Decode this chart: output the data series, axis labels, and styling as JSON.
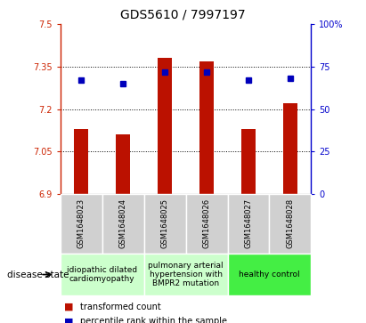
{
  "title": "GDS5610 / 7997197",
  "samples": [
    "GSM1648023",
    "GSM1648024",
    "GSM1648025",
    "GSM1648026",
    "GSM1648027",
    "GSM1648028"
  ],
  "transformed_count": [
    7.13,
    7.11,
    7.38,
    7.37,
    7.13,
    7.22
  ],
  "percentile_rank": [
    67,
    65,
    72,
    72,
    67,
    68
  ],
  "ylim_left": [
    6.9,
    7.5
  ],
  "ylim_right": [
    0,
    100
  ],
  "yticks_left": [
    6.9,
    7.05,
    7.2,
    7.35,
    7.5
  ],
  "yticks_right": [
    0,
    25,
    50,
    75,
    100
  ],
  "grid_yticks": [
    7.05,
    7.2,
    7.35
  ],
  "bar_color": "#bb1100",
  "dot_color": "#0000bb",
  "bar_width": 0.35,
  "title_fontsize": 10,
  "tick_fontsize": 7,
  "sample_fontsize": 6,
  "legend_fontsize": 7,
  "disease_fontsize": 6.5,
  "group_colors": [
    "#ccffcc",
    "#ccffcc",
    "#44ee44"
  ],
  "group_starts": [
    0,
    2,
    4
  ],
  "group_ends": [
    2,
    4,
    6
  ],
  "group_labels": [
    "idiopathic dilated\ncardiomyopathy",
    "pulmonary arterial\nhypertension with\nBMPR2 mutation",
    "healthy control"
  ],
  "legend_red_label": "transformed count",
  "legend_blue_label": "percentile rank within the sample",
  "disease_state_label": "disease state"
}
